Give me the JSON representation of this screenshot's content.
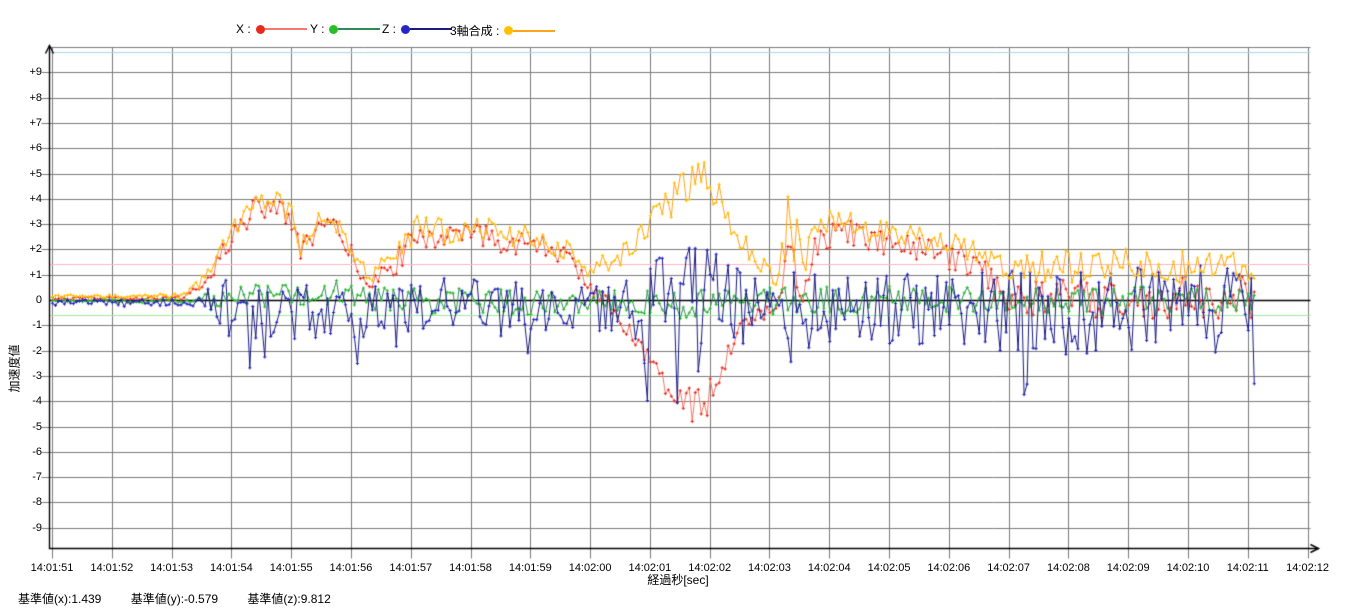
{
  "page": {
    "background": "#FFFFFF"
  },
  "legend": {
    "items": [
      {
        "label": "X :"
      },
      {
        "label": "Y :"
      },
      {
        "label": "Z :"
      },
      {
        "label": "3軸合成 :"
      }
    ]
  },
  "axes": {
    "y_title": "加速度値",
    "x_title": "経過秒[sec]"
  },
  "footer": {
    "items": [
      {
        "text": "基準値(x):1.439"
      },
      {
        "text": "基準値(y):-0.579"
      },
      {
        "text": "基準値(z):9.812"
      }
    ]
  },
  "chart_data": {
    "type": "line",
    "title": "",
    "xlabel": "経過秒[sec]",
    "ylabel": "加速度値",
    "x_tick_labels": [
      "14:01:51",
      "14:01:52",
      "14:01:53",
      "14:01:54",
      "14:01:55",
      "14:01:56",
      "14:01:57",
      "14:01:58",
      "14:01:59",
      "14:02:00",
      "14:02:01",
      "14:02:02",
      "14:02:03",
      "14:02:04",
      "14:02:05",
      "14:02:06",
      "14:02:07",
      "14:02:08",
      "14:02:09",
      "14:02:10",
      "14:02:11",
      "14:02:12"
    ],
    "y_tick_labels": [
      "+9",
      "+8",
      "+7",
      "+6",
      "+5",
      "+4",
      "+3",
      "+2",
      "+1",
      "0",
      "-1",
      "-2",
      "-3",
      "-4",
      "-5",
      "-6",
      "-7",
      "-8",
      "-9"
    ],
    "ylim": [
      -10,
      10
    ],
    "grid": true,
    "legend_position": "top",
    "x_axis_span_sec": 21,
    "data_start_time": "14:01:51",
    "data_end_offset_sec": 20.1,
    "samples_per_sec": 20,
    "grid_color": "#7A7A7A",
    "zero_line_color": "#000000",
    "reference_lines": [
      {
        "name": "基準値(x)",
        "value": 1.439,
        "color": "#FFB6C1"
      },
      {
        "name": "基準値(y)",
        "value": -0.579,
        "color": "#9FE8A0"
      },
      {
        "name": "基準値(z)",
        "value": 9.812,
        "color": "#A8D6E8"
      }
    ],
    "note": "Noisy 3-axis accelerometer traces. Each envelope keyframe = [t_sec_after_14:01:51, mean, noise_amplitude]; rendered value = mean + amplitude*uniform(-1,1) sampled at samples_per_sec.",
    "series": [
      {
        "name": "X",
        "marker_color": "#E8291C",
        "line_color": "#F4796B",
        "envelope": [
          [
            0,
            0.07,
            0.06
          ],
          [
            2.2,
            0.1,
            0.08
          ],
          [
            2.6,
            0.8,
            0.25
          ],
          [
            3.0,
            2.6,
            0.45
          ],
          [
            3.4,
            3.6,
            0.5
          ],
          [
            3.7,
            3.9,
            0.45
          ],
          [
            4.0,
            3.0,
            0.5
          ],
          [
            4.15,
            1.9,
            0.35
          ],
          [
            4.45,
            2.9,
            0.4
          ],
          [
            4.75,
            2.8,
            0.4
          ],
          [
            5.0,
            1.8,
            0.4
          ],
          [
            5.3,
            0.6,
            0.3
          ],
          [
            5.7,
            1.3,
            0.45
          ],
          [
            6.1,
            2.7,
            0.5
          ],
          [
            6.6,
            2.4,
            0.5
          ],
          [
            7.1,
            2.6,
            0.5
          ],
          [
            7.6,
            2.3,
            0.45
          ],
          [
            8.1,
            2.2,
            0.45
          ],
          [
            8.6,
            1.7,
            0.4
          ],
          [
            9.0,
            0.6,
            0.35
          ],
          [
            9.4,
            -0.6,
            0.35
          ],
          [
            9.8,
            -1.5,
            0.45
          ],
          [
            10.2,
            -3.1,
            0.5
          ],
          [
            10.6,
            -3.9,
            0.55
          ],
          [
            10.85,
            -4.4,
            0.9
          ],
          [
            11.1,
            -3.2,
            0.5
          ],
          [
            11.4,
            -1.4,
            0.4
          ],
          [
            11.7,
            -0.6,
            0.35
          ],
          [
            12.1,
            -0.4,
            0.3
          ],
          [
            12.35,
            1.5,
            1.7
          ],
          [
            12.55,
            0.3,
            0.6
          ],
          [
            12.75,
            2.2,
            0.5
          ],
          [
            13.0,
            2.5,
            0.5
          ],
          [
            13.2,
            2.8,
            0.55
          ],
          [
            13.6,
            2.4,
            0.5
          ],
          [
            14.2,
            2.2,
            0.5
          ],
          [
            14.8,
            1.8,
            0.5
          ],
          [
            15.4,
            1.5,
            0.55
          ],
          [
            15.9,
            0.3,
            0.7
          ],
          [
            16.6,
            0.1,
            0.8
          ],
          [
            17.5,
            0.0,
            0.85
          ],
          [
            18.5,
            0.05,
            0.85
          ],
          [
            19.5,
            0.0,
            0.9
          ],
          [
            20.1,
            0.1,
            0.9
          ]
        ]
      },
      {
        "name": "Y",
        "marker_color": "#27BE27",
        "line_color": "#2E8B57",
        "envelope": [
          [
            0,
            -0.02,
            0.05
          ],
          [
            2.4,
            -0.02,
            0.08
          ],
          [
            2.7,
            0,
            0.5
          ],
          [
            4.4,
            0.35,
            0.5
          ],
          [
            5.1,
            0.3,
            0.5
          ],
          [
            5.6,
            0,
            0.55
          ],
          [
            8.2,
            -0.1,
            0.5
          ],
          [
            9.3,
            0,
            0.45
          ],
          [
            10.3,
            -0.15,
            0.6
          ],
          [
            11.5,
            -0.1,
            0.5
          ],
          [
            12.4,
            0,
            0.6
          ],
          [
            13.5,
            0.05,
            0.55
          ],
          [
            16,
            0.05,
            0.5
          ],
          [
            18,
            0,
            0.55
          ],
          [
            20.1,
            0,
            0.5
          ]
        ]
      },
      {
        "name": "Z",
        "marker_color": "#2424C8",
        "line_color": "#1A1A80",
        "envelope": [
          [
            0,
            -0.05,
            0.1
          ],
          [
            2.4,
            -0.1,
            0.15
          ],
          [
            2.7,
            -0.3,
            1.1
          ],
          [
            3.5,
            -0.3,
            1.2
          ],
          [
            4.5,
            -0.35,
            1.2
          ],
          [
            5.5,
            -0.3,
            1.1
          ],
          [
            6.5,
            -0.35,
            1.3
          ],
          [
            7.5,
            -0.3,
            1.2
          ],
          [
            8.5,
            -0.3,
            1.1
          ],
          [
            9.3,
            -0.2,
            1.0
          ],
          [
            9.8,
            -0.2,
            1.6
          ],
          [
            10.3,
            -0.1,
            2.4
          ],
          [
            10.8,
            -0.2,
            2.6
          ],
          [
            11.3,
            -0.3,
            2.2
          ],
          [
            11.8,
            -0.3,
            1.2
          ],
          [
            12.2,
            -0.2,
            1.0
          ],
          [
            12.45,
            -1.0,
            2.3
          ],
          [
            12.7,
            -0.4,
            1.5
          ],
          [
            13.2,
            -0.4,
            1.5
          ],
          [
            14.0,
            -0.35,
            1.5
          ],
          [
            15.0,
            -0.3,
            1.3
          ],
          [
            16.0,
            -0.4,
            1.7
          ],
          [
            17.0,
            -0.4,
            1.8
          ],
          [
            18.0,
            -0.35,
            1.7
          ],
          [
            19.0,
            -0.4,
            1.8
          ],
          [
            20.1,
            -0.35,
            1.7
          ]
        ]
      },
      {
        "name": "3軸合成",
        "marker_color": "#FFC000",
        "line_color": "#FFA319",
        "envelope": [
          [
            0,
            0.16,
            0.07
          ],
          [
            2.2,
            0.2,
            0.1
          ],
          [
            2.6,
            1.0,
            0.3
          ],
          [
            3.0,
            2.9,
            0.5
          ],
          [
            3.4,
            3.8,
            0.5
          ],
          [
            3.7,
            4.1,
            0.45
          ],
          [
            4.0,
            3.3,
            0.5
          ],
          [
            4.15,
            2.2,
            0.4
          ],
          [
            4.45,
            3.1,
            0.4
          ],
          [
            4.75,
            3.0,
            0.4
          ],
          [
            5.0,
            2.0,
            0.4
          ],
          [
            5.3,
            1.0,
            0.35
          ],
          [
            5.7,
            1.6,
            0.45
          ],
          [
            6.1,
            2.9,
            0.5
          ],
          [
            6.6,
            2.7,
            0.5
          ],
          [
            7.1,
            2.9,
            0.5
          ],
          [
            7.6,
            2.6,
            0.45
          ],
          [
            8.1,
            2.5,
            0.45
          ],
          [
            8.6,
            2.0,
            0.4
          ],
          [
            9.0,
            1.2,
            0.35
          ],
          [
            9.4,
            1.6,
            0.45
          ],
          [
            9.8,
            2.4,
            0.55
          ],
          [
            10.2,
            3.6,
            0.7
          ],
          [
            10.6,
            4.4,
            0.8
          ],
          [
            10.85,
            5.0,
            0.9
          ],
          [
            11.1,
            4.2,
            0.7
          ],
          [
            11.4,
            2.9,
            0.6
          ],
          [
            11.7,
            1.7,
            0.5
          ],
          [
            12.1,
            1.0,
            0.4
          ],
          [
            12.35,
            3.4,
            1.7
          ],
          [
            12.55,
            1.5,
            0.7
          ],
          [
            12.75,
            2.8,
            0.6
          ],
          [
            13.0,
            3.1,
            0.55
          ],
          [
            13.2,
            3.0,
            0.55
          ],
          [
            13.6,
            2.9,
            0.55
          ],
          [
            14.2,
            2.6,
            0.5
          ],
          [
            14.8,
            2.3,
            0.5
          ],
          [
            15.4,
            2.0,
            0.5
          ],
          [
            15.9,
            1.4,
            0.6
          ],
          [
            17.0,
            1.35,
            0.65
          ],
          [
            18.0,
            1.4,
            0.65
          ],
          [
            19.0,
            1.3,
            0.65
          ],
          [
            20.1,
            1.4,
            0.65
          ]
        ]
      }
    ]
  }
}
